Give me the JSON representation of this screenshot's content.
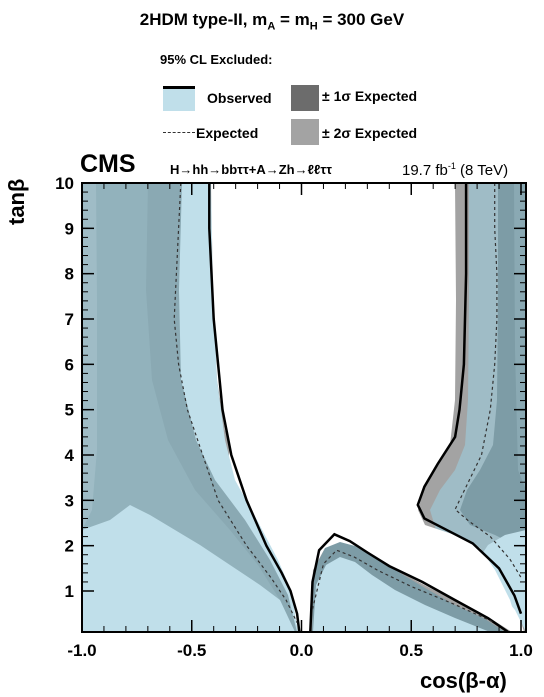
{
  "header": {
    "title_main": "2HDM type-II, m",
    "title_sub_a": "A",
    "title_eq": " = m",
    "title_sub_h": "H",
    "title_end": " = 300 GeV",
    "legend_heading": "95% CL Excluded:"
  },
  "legend": {
    "observed": "Observed",
    "expected": "Expected",
    "one_sigma": "± 1σ Expected",
    "two_sigma": "± 2σ Expected"
  },
  "labels": {
    "experiment": "CMS",
    "process": "H→hh→bbττ+A→Zh→ℓℓττ",
    "lumi_value": "19.7 fb",
    "lumi_exp": "-1",
    "lumi_energy": " (8 TeV)"
  },
  "colors": {
    "observed_fill": "#c0dfea",
    "two_sigma": "#a3a3a3",
    "one_sigma": "#6c6c6c",
    "expected_line": "#333333"
  },
  "chart_data": {
    "type": "area",
    "xlabel": "cos(β-α)",
    "ylabel": "tanβ",
    "xlim": [
      -1.0,
      1.0
    ],
    "ylim": [
      0.1,
      10
    ],
    "xticks": [
      -1.0,
      -0.5,
      0.0,
      0.5,
      1.0
    ],
    "xtick_labels": [
      "-1.0",
      "-0.5",
      "0.0",
      "0.5",
      "1.0"
    ],
    "yticks": [
      1,
      2,
      3,
      4,
      5,
      6,
      7,
      8,
      9,
      10
    ],
    "ytick_labels": [
      "1",
      "2",
      "3",
      "4",
      "5",
      "6",
      "7",
      "8",
      "9",
      "10"
    ],
    "regions": [
      {
        "name": "±2σ Expected",
        "polygon": [
          [
            -1.0,
            0.1
          ],
          [
            -1.0,
            10
          ],
          [
            -0.31,
            10
          ],
          [
            -0.32,
            9.5
          ],
          [
            -0.33,
            8
          ],
          [
            -0.34,
            6
          ],
          [
            -0.32,
            4
          ],
          [
            -0.28,
            3
          ],
          [
            -0.2,
            2
          ],
          [
            -0.12,
            1.3
          ],
          [
            -0.06,
            0.8
          ],
          [
            -0.02,
            0.4
          ],
          [
            -0.01,
            0.1
          ]
        ]
      },
      {
        "name": "±2σ Expected",
        "polygon": [
          [
            0.03,
            0.1
          ],
          [
            0.04,
            1.5
          ],
          [
            0.08,
            2.2
          ],
          [
            0.16,
            2.6
          ],
          [
            0.24,
            2.45
          ],
          [
            0.3,
            2.1
          ],
          [
            0.38,
            1.7
          ],
          [
            0.5,
            1.3
          ],
          [
            0.65,
            0.9
          ],
          [
            0.8,
            0.5
          ],
          [
            0.92,
            0.1
          ]
        ]
      },
      {
        "name": "±2σ Expected",
        "polygon": [
          [
            1.0,
            0.1
          ],
          [
            1.0,
            10
          ],
          [
            0.7,
            10
          ],
          [
            0.7,
            9
          ],
          [
            0.7,
            7
          ],
          [
            0.69,
            5
          ],
          [
            0.65,
            4
          ],
          [
            0.58,
            3.6
          ],
          [
            0.52,
            3.2
          ],
          [
            0.5,
            2.8
          ],
          [
            0.53,
            2.5
          ],
          [
            0.62,
            2.25
          ],
          [
            0.75,
            1.9
          ],
          [
            0.88,
            1.2
          ],
          [
            0.97,
            0.6
          ],
          [
            0.99,
            0.1
          ]
        ]
      }
    ],
    "observed_boundary": [
      {
        "segment": "left",
        "points": [
          [
            -0.42,
            10
          ],
          [
            -0.42,
            9
          ],
          [
            -0.41,
            8
          ],
          [
            -0.4,
            7
          ],
          [
            -0.38,
            6
          ],
          [
            -0.36,
            5
          ],
          [
            -0.32,
            4
          ],
          [
            -0.25,
            3
          ],
          [
            -0.16,
            2
          ],
          [
            -0.09,
            1.4
          ],
          [
            -0.05,
            1
          ],
          [
            -0.02,
            0.5
          ],
          [
            -0.01,
            0.1
          ]
        ]
      },
      {
        "segment": "middle",
        "points": [
          [
            0.04,
            0.1
          ],
          [
            0.05,
            1.2
          ],
          [
            0.08,
            1.9
          ],
          [
            0.15,
            2.25
          ],
          [
            0.22,
            2.1
          ],
          [
            0.3,
            1.85
          ],
          [
            0.4,
            1.55
          ],
          [
            0.55,
            1.2
          ],
          [
            0.7,
            0.8
          ],
          [
            0.85,
            0.4
          ],
          [
            0.94,
            0.1
          ]
        ]
      },
      {
        "segment": "right",
        "points": [
          [
            0.75,
            10
          ],
          [
            0.75,
            9
          ],
          [
            0.75,
            8
          ],
          [
            0.74,
            6
          ],
          [
            0.72,
            5
          ],
          [
            0.7,
            4.4
          ],
          [
            0.62,
            3.8
          ],
          [
            0.56,
            3.3
          ],
          [
            0.53,
            2.9
          ],
          [
            0.56,
            2.6
          ],
          [
            0.66,
            2.35
          ],
          [
            0.78,
            2.05
          ],
          [
            0.9,
            1.5
          ],
          [
            0.97,
            0.9
          ],
          [
            1.0,
            0.5
          ]
        ]
      }
    ],
    "expected_line": [
      {
        "segment": "left",
        "points": [
          [
            -0.55,
            10
          ],
          [
            -0.56,
            9
          ],
          [
            -0.57,
            8
          ],
          [
            -0.58,
            7
          ],
          [
            -0.56,
            6
          ],
          [
            -0.52,
            5
          ],
          [
            -0.45,
            4
          ],
          [
            -0.38,
            3
          ],
          [
            -0.25,
            2
          ],
          [
            -0.14,
            1.3
          ],
          [
            -0.07,
            0.8
          ],
          [
            -0.02,
            0.3
          ]
        ]
      },
      {
        "segment": "middle",
        "points": [
          [
            0.05,
            0.6
          ],
          [
            0.1,
            1.6
          ],
          [
            0.16,
            1.9
          ],
          [
            0.24,
            1.75
          ],
          [
            0.35,
            1.45
          ],
          [
            0.5,
            1.1
          ],
          [
            0.7,
            0.7
          ],
          [
            0.88,
            0.3
          ]
        ]
      },
      {
        "segment": "right",
        "points": [
          [
            0.88,
            10
          ],
          [
            0.88,
            9
          ],
          [
            0.89,
            8
          ],
          [
            0.89,
            7
          ],
          [
            0.88,
            6
          ],
          [
            0.86,
            5
          ],
          [
            0.82,
            4
          ],
          [
            0.74,
            3.2
          ],
          [
            0.7,
            2.8
          ],
          [
            0.76,
            2.55
          ],
          [
            0.86,
            2.2
          ],
          [
            0.95,
            1.7
          ],
          [
            1.0,
            1.3
          ]
        ]
      }
    ]
  }
}
